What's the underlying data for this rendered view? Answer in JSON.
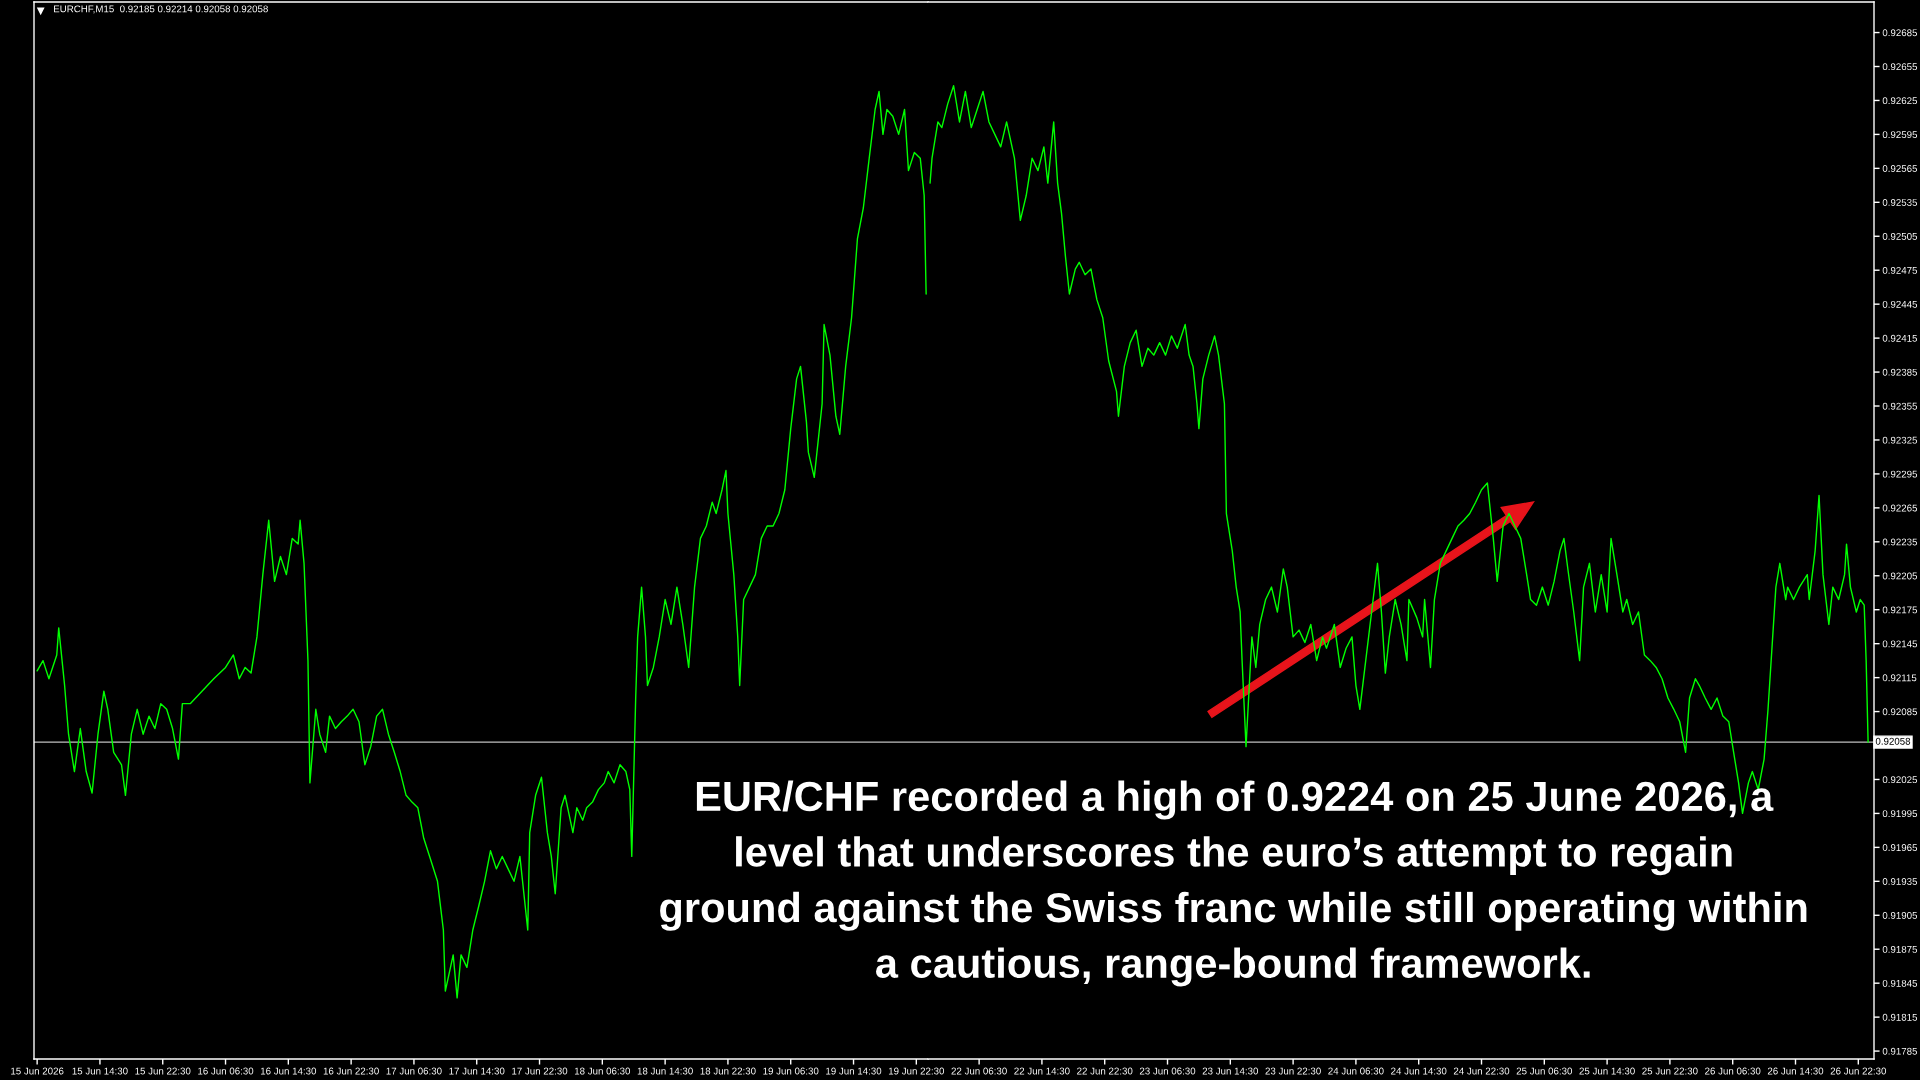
{
  "chart_data": [
    {
      "type": "line",
      "title": "EURCHF,M15  0.92185 0.92214 0.92058 0.92058",
      "x": [
        "2026-06-15T06:30",
        "2026-06-15T07:15",
        "2026-06-15T08:00",
        "2026-06-15T09:00",
        "2026-06-15T09:15",
        "2026-06-15T10:00",
        "2026-06-15T10:30",
        "2026-06-15T11:15",
        "2026-06-15T12:00",
        "2026-06-15T12:45",
        "2026-06-15T13:30",
        "2026-06-15T14:15",
        "2026-06-15T15:00",
        "2026-06-15T15:30",
        "2026-06-15T16:15",
        "2026-06-15T17:15",
        "2026-06-15T17:45",
        "2026-06-15T18:30",
        "2026-06-15T19:15",
        "2026-06-15T20:00",
        "2026-06-15T20:45",
        "2026-06-15T21:30",
        "2026-06-15T22:15",
        "2026-06-15T23:00",
        "2026-06-15T23:45",
        "2026-06-16T00:30",
        "2026-06-16T01:00",
        "2026-06-16T02:00",
        "2026-06-16T03:30",
        "2026-06-16T05:00",
        "2026-06-16T06:30",
        "2026-06-16T07:30",
        "2026-06-16T08:15",
        "2026-06-16T09:00",
        "2026-06-16T09:45",
        "2026-06-16T10:30",
        "2026-06-16T11:15",
        "2026-06-16T12:00",
        "2026-06-16T12:45",
        "2026-06-16T13:30",
        "2026-06-16T14:15",
        "2026-06-16T15:00",
        "2026-06-16T15:45",
        "2026-06-16T16:00",
        "2026-06-16T16:30",
        "2026-06-16T17:00",
        "2026-06-16T17:15",
        "2026-06-16T18:00",
        "2026-06-16T18:30",
        "2026-06-16T19:15",
        "2026-06-16T19:45",
        "2026-06-16T20:30",
        "2026-06-16T21:15",
        "2026-06-16T22:00",
        "2026-06-16T22:45",
        "2026-06-16T23:30",
        "2026-06-17T00:15",
        "2026-06-17T01:00",
        "2026-06-17T01:45",
        "2026-06-17T02:30",
        "2026-06-17T03:15",
        "2026-06-17T04:00",
        "2026-06-17T04:45",
        "2026-06-17T05:30",
        "2026-06-17T06:15",
        "2026-06-17T07:00",
        "2026-06-17T07:45",
        "2026-06-17T08:30",
        "2026-06-17T09:30",
        "2026-06-17T10:15",
        "2026-06-17T10:30",
        "2026-06-17T11:30",
        "2026-06-17T12:00",
        "2026-06-17T12:30",
        "2026-06-17T13:15",
        "2026-06-17T14:00",
        "2026-06-17T14:45",
        "2026-06-17T15:30",
        "2026-06-17T16:15",
        "2026-06-17T17:00",
        "2026-06-17T17:45",
        "2026-06-17T18:30",
        "2026-06-17T19:15",
        "2026-06-17T20:00",
        "2026-06-17T21:00",
        "2026-06-17T21:15",
        "2026-06-17T22:00",
        "2026-06-17T22:45",
        "2026-06-17T23:30",
        "2026-06-18T00:00",
        "2026-06-18T00:30",
        "2026-06-18T01:15",
        "2026-06-18T01:45",
        "2026-06-18T02:45",
        "2026-06-18T03:15",
        "2026-06-18T04:00",
        "2026-06-18T04:30",
        "2026-06-18T05:15",
        "2026-06-18T06:00",
        "2026-06-18T06:45",
        "2026-06-18T07:15",
        "2026-06-18T08:00",
        "2026-06-18T08:45",
        "2026-06-18T09:30",
        "2026-06-18T10:00",
        "2026-06-18T10:15",
        "2026-06-18T10:45",
        "2026-06-18T11:00",
        "2026-06-18T11:30",
        "2026-06-18T12:00",
        "2026-06-18T12:15",
        "2026-06-18T13:00",
        "2026-06-18T13:45",
        "2026-06-18T14:30",
        "2026-06-18T15:15",
        "2026-06-18T16:00",
        "2026-06-18T16:45",
        "2026-06-18T17:30",
        "2026-06-18T18:15",
        "2026-06-18T19:00",
        "2026-06-18T19:45",
        "2026-06-18T20:30",
        "2026-06-18T21:00",
        "2026-06-18T21:45",
        "2026-06-18T22:15",
        "2026-06-18T22:30",
        "2026-06-18T23:15",
        "2026-06-18T23:45",
        "2026-06-19T00:00",
        "2026-06-19T00:30",
        "2026-06-19T01:15",
        "2026-06-19T02:00",
        "2026-06-19T02:45",
        "2026-06-19T03:30",
        "2026-06-19T04:15",
        "2026-06-19T05:00",
        "2026-06-19T05:45",
        "2026-06-19T06:30",
        "2026-06-19T07:15",
        "2026-06-19T07:45",
        "2026-06-19T08:30",
        "2026-06-19T08:45",
        "2026-06-19T09:30",
        "2026-06-19T10:30",
        "2026-06-19T10:45",
        "2026-06-19T11:30",
        "2026-06-19T12:15",
        "2026-06-19T12:45",
        "2026-06-19T13:30",
        "2026-06-19T14:15",
        "2026-06-19T15:00",
        "2026-06-19T15:45",
        "2026-06-19T16:30",
        "2026-06-19T17:15",
        "2026-06-19T17:45",
        "2026-06-19T18:15",
        "2026-06-19T18:45",
        "2026-06-19T19:30",
        "2026-06-19T20:15",
        "2026-06-19T21:00",
        "2026-06-19T21:30",
        "2026-06-19T22:15",
        "2026-06-19T23:00",
        "2026-06-19T23:30",
        "2026-06-19T23:45"
      ],
      "series": [
        {
          "color": "#00ff00",
          "values": [
            0.92121,
            0.9213,
            0.92114,
            0.92135,
            0.92159,
            0.92108,
            0.92065,
            0.92032,
            0.9207,
            0.92032,
            0.92013,
            0.92065,
            0.92103,
            0.92087,
            0.92049,
            0.92038,
            0.92011,
            0.92065,
            0.92087,
            0.92065,
            0.92081,
            0.9207,
            0.92092,
            0.92087,
            0.9207,
            0.92043,
            0.92092,
            0.92092,
            0.92103,
            0.92114,
            0.92124,
            0.92135,
            0.92114,
            0.92124,
            0.92119,
            0.92151,
            0.92206,
            0.92254,
            0.922,
            0.92222,
            0.92206,
            0.92238,
            0.92233,
            0.92254,
            0.92216,
            0.9213,
            0.92022,
            0.92087,
            0.92065,
            0.92049,
            0.92081,
            0.9207,
            0.92076,
            0.92081,
            0.92087,
            0.92076,
            0.92038,
            0.92054,
            0.92081,
            0.92087,
            0.92065,
            0.92049,
            0.92032,
            0.92011,
            0.92005,
            0.92,
            0.91973,
            0.91957,
            0.91935,
            0.91892,
            0.91838,
            0.9187,
            0.91832,
            0.9187,
            0.91859,
            0.91892,
            0.91913,
            0.91935,
            0.91962,
            0.91946,
            0.91957,
            0.91946,
            0.91935,
            0.91957,
            0.91892,
            0.91978,
            0.92011,
            0.92027,
            0.91978,
            0.91957,
            0.91924,
            0.92,
            0.92011,
            0.91978,
            0.92,
            0.91989,
            0.92,
            0.92005,
            0.92016,
            0.92022,
            0.92032,
            0.92022,
            0.92038,
            0.92032,
            0.92016,
            0.91957,
            0.92097,
            0.92151,
            0.92195,
            0.92151,
            0.92108,
            0.92124,
            0.92151,
            0.92184,
            0.92162,
            0.92195,
            0.92162,
            0.92124,
            0.92195,
            0.92238,
            0.92249,
            0.9227,
            0.9226,
            0.92281,
            0.92298,
            0.9226,
            0.92206,
            0.92151,
            0.92108,
            0.92184,
            0.92195,
            0.92206,
            0.92238,
            0.92249,
            0.92249,
            0.9226,
            0.92281,
            0.92335,
            0.92379,
            0.9239,
            0.92341,
            0.92314,
            0.92292,
            0.92357,
            0.92427,
            0.924,
            0.92346,
            0.9233,
            0.9239,
            0.92433,
            0.92503,
            0.9253,
            0.92574,
            0.92617,
            0.92633,
            0.92595,
            0.92617,
            0.92611,
            0.92595,
            0.92617,
            0.92563,
            0.92579,
            0.92574,
            0.92541,
            0.92454
          ]
        }
      ],
      "xlim": [
        "2026-06-15T06:06",
        "2026-06-20T00:00"
      ],
      "xticks": [
        {
          "value": "2026-06-15T06:30",
          "label": "15 Jun 2026"
        },
        {
          "value": "2026-06-15T14:30",
          "label": "15 Jun 14:30"
        },
        {
          "value": "2026-06-15T22:30",
          "label": "15 Jun 22:30"
        },
        {
          "value": "2026-06-16T06:30",
          "label": "16 Jun 06:30"
        },
        {
          "value": "2026-06-16T14:30",
          "label": "16 Jun 14:30"
        },
        {
          "value": "2026-06-16T22:30",
          "label": "16 Jun 22:30"
        },
        {
          "value": "2026-06-17T06:30",
          "label": "17 Jun 06:30"
        },
        {
          "value": "2026-06-17T14:30",
          "label": "17 Jun 14:30"
        },
        {
          "value": "2026-06-17T22:30",
          "label": "17 Jun 22:30"
        },
        {
          "value": "2026-06-18T06:30",
          "label": "18 Jun 06:30"
        },
        {
          "value": "2026-06-18T14:30",
          "label": "18 Jun 14:30"
        },
        {
          "value": "2026-06-18T22:30",
          "label": "18 Jun 22:30"
        },
        {
          "value": "2026-06-19T06:30",
          "label": "19 Jun 06:30"
        },
        {
          "value": "2026-06-19T14:30",
          "label": "19 Jun 14:30"
        },
        {
          "value": "2026-06-19T22:30",
          "label": "19 Jun 22:30"
        }
      ],
      "ylim": [
        0.91778,
        0.92712
      ],
      "tick_labels": "x",
      "ref_lines": [
        {
          "axis": "y",
          "value": 0.92058,
          "color": "#c0c0c0"
        }
      ]
    },
    {
      "type": "line",
      "annotations": [
        "EUR/CHF recorded a high of 0.9224 on 25 June 2026, a\nlevel that underscores the euro’s attempt to regain\nground against the Swiss franc while still operating within\na cautious, range-bound framework."
      ],
      "x": [
        "2026-06-22T00:15",
        "2026-06-22T00:30",
        "2026-06-22T01:15",
        "2026-06-22T01:45",
        "2026-06-22T02:30",
        "2026-06-22T03:15",
        "2026-06-22T04:00",
        "2026-06-22T04:45",
        "2026-06-22T05:30",
        "2026-06-22T06:15",
        "2026-06-22T07:00",
        "2026-06-22T07:45",
        "2026-06-22T08:30",
        "2026-06-22T09:15",
        "2026-06-22T10:00",
        "2026-06-22T11:00",
        "2026-06-22T11:45",
        "2026-06-22T12:30",
        "2026-06-22T13:15",
        "2026-06-22T14:00",
        "2026-06-22T14:45",
        "2026-06-22T15:15",
        "2026-06-22T16:00",
        "2026-06-22T16:30",
        "2026-06-22T17:00",
        "2026-06-22T17:30",
        "2026-06-22T18:00",
        "2026-06-22T18:45",
        "2026-06-22T19:15",
        "2026-06-22T20:00",
        "2026-06-22T20:45",
        "2026-06-22T21:30",
        "2026-06-22T22:15",
        "2026-06-22T23:00",
        "2026-06-23T00:00",
        "2026-06-23T00:15",
        "2026-06-23T01:00",
        "2026-06-23T01:45",
        "2026-06-23T02:30",
        "2026-06-23T03:15",
        "2026-06-23T04:00",
        "2026-06-23T04:45",
        "2026-06-23T05:30",
        "2026-06-23T06:15",
        "2026-06-23T07:00",
        "2026-06-23T07:45",
        "2026-06-23T08:45",
        "2026-06-23T09:15",
        "2026-06-23T09:45",
        "2026-06-23T10:15",
        "2026-06-23T10:30",
        "2026-06-23T11:00",
        "2026-06-23T11:45",
        "2026-06-23T12:30",
        "2026-06-23T13:00",
        "2026-06-23T13:45",
        "2026-06-23T14:00",
        "2026-06-23T14:45",
        "2026-06-23T15:15",
        "2026-06-23T15:45",
        "2026-06-23T16:00",
        "2026-06-23T16:30",
        "2026-06-23T17:15",
        "2026-06-23T17:45",
        "2026-06-23T18:15",
        "2026-06-23T19:00",
        "2026-06-23T19:45",
        "2026-06-23T20:30",
        "2026-06-23T21:15",
        "2026-06-23T21:45",
        "2026-06-23T22:30",
        "2026-06-23T23:15",
        "2026-06-24T00:00",
        "2026-06-24T00:45",
        "2026-06-24T01:30",
        "2026-06-24T02:15",
        "2026-06-24T02:45",
        "2026-06-24T03:45",
        "2026-06-24T04:30",
        "2026-06-24T05:15",
        "2026-06-24T06:00",
        "2026-06-24T06:30",
        "2026-06-24T07:00",
        "2026-06-24T07:45",
        "2026-06-24T08:30",
        "2026-06-24T09:15",
        "2026-06-24T09:45",
        "2026-06-24T10:15",
        "2026-06-24T10:45",
        "2026-06-24T11:30",
        "2026-06-24T12:15",
        "2026-06-24T13:00",
        "2026-06-24T13:15",
        "2026-06-24T14:15",
        "2026-06-24T15:00",
        "2026-06-24T15:15",
        "2026-06-24T16:00",
        "2026-06-24T16:30",
        "2026-06-24T17:15",
        "2026-06-24T18:00",
        "2026-06-24T18:45",
        "2026-06-24T19:30",
        "2026-06-24T20:15",
        "2026-06-24T21:00",
        "2026-06-24T21:45",
        "2026-06-24T22:30",
        "2026-06-24T23:15",
        "2026-06-25T00:00",
        "2026-06-25T00:30",
        "2026-06-25T01:15",
        "2026-06-25T02:00",
        "2026-06-25T02:45",
        "2026-06-25T03:30",
        "2026-06-25T04:15",
        "2026-06-25T04:45",
        "2026-06-25T05:30",
        "2026-06-25T06:15",
        "2026-06-25T07:00",
        "2026-06-25T07:45",
        "2026-06-25T08:30",
        "2026-06-25T09:00",
        "2026-06-25T09:30",
        "2026-06-25T10:15",
        "2026-06-25T11:00",
        "2026-06-25T11:30",
        "2026-06-25T12:15",
        "2026-06-25T13:00",
        "2026-06-25T13:45",
        "2026-06-25T14:30",
        "2026-06-25T15:00",
        "2026-06-25T15:45",
        "2026-06-25T16:30",
        "2026-06-25T17:00",
        "2026-06-25T17:45",
        "2026-06-25T18:30",
        "2026-06-25T19:15",
        "2026-06-25T20:00",
        "2026-06-25T20:45",
        "2026-06-25T21:30",
        "2026-06-25T22:15",
        "2026-06-25T23:00",
        "2026-06-25T23:45",
        "2026-06-26T00:30",
        "2026-06-26T01:00",
        "2026-06-26T01:45",
        "2026-06-26T02:15",
        "2026-06-26T03:00",
        "2026-06-26T03:45",
        "2026-06-26T04:30",
        "2026-06-26T05:15",
        "2026-06-26T06:00",
        "2026-06-26T06:30",
        "2026-06-26T07:15",
        "2026-06-26T07:45",
        "2026-06-26T08:30",
        "2026-06-26T09:00",
        "2026-06-26T09:45",
        "2026-06-26T10:30",
        "2026-06-26T11:00",
        "2026-06-26T11:30",
        "2026-06-26T12:00",
        "2026-06-26T12:30",
        "2026-06-26T13:15",
        "2026-06-26T13:30",
        "2026-06-26T14:15",
        "2026-06-26T15:00",
        "2026-06-26T16:00",
        "2026-06-26T16:15",
        "2026-06-26T17:00",
        "2026-06-26T17:30",
        "2026-06-26T18:00",
        "2026-06-26T18:45",
        "2026-06-26T19:15",
        "2026-06-26T20:00",
        "2026-06-26T20:45",
        "2026-06-26T21:00",
        "2026-06-26T21:30",
        "2026-06-26T22:15",
        "2026-06-26T22:45",
        "2026-06-26T23:15",
        "2026-06-26T23:30",
        "2026-06-26T23:45"
      ],
      "series": [
        {
          "color": "#00ff00",
          "values": [
            0.92552,
            0.92574,
            0.92606,
            0.92601,
            0.92622,
            0.92638,
            0.92606,
            0.92633,
            0.92601,
            0.92617,
            0.92633,
            0.92606,
            0.92595,
            0.92584,
            0.92606,
            0.92574,
            0.92519,
            0.92541,
            0.92574,
            0.92563,
            0.92584,
            0.92552,
            0.92606,
            0.92552,
            0.92525,
            0.92487,
            0.92454,
            0.92476,
            0.92482,
            0.92471,
            0.92476,
            0.92449,
            0.92433,
            0.92395,
            0.92368,
            0.92346,
            0.9239,
            0.92411,
            0.92422,
            0.9239,
            0.92406,
            0.924,
            0.92411,
            0.924,
            0.92417,
            0.92406,
            0.92427,
            0.924,
            0.9239,
            0.92357,
            0.92335,
            0.92379,
            0.924,
            0.92417,
            0.924,
            0.92357,
            0.9226,
            0.92227,
            0.92195,
            0.92173,
            0.9213,
            0.92054,
            0.92151,
            0.92124,
            0.92162,
            0.92184,
            0.92195,
            0.92173,
            0.92211,
            0.92195,
            0.92151,
            0.92157,
            0.92146,
            0.92162,
            0.9213,
            0.92151,
            0.92141,
            0.92162,
            0.92124,
            0.92141,
            0.92151,
            0.92108,
            0.92087,
            0.9213,
            0.92173,
            0.92216,
            0.92173,
            0.92119,
            0.92151,
            0.92184,
            0.92162,
            0.9213,
            0.92184,
            0.92168,
            0.92151,
            0.92184,
            0.92124,
            0.92184,
            0.92216,
            0.92227,
            0.92238,
            0.92249,
            0.92254,
            0.9226,
            0.9227,
            0.92281,
            0.92287,
            0.92238,
            0.922,
            0.92249,
            0.9226,
            0.92249,
            0.92238,
            0.92206,
            0.92184,
            0.92179,
            0.92195,
            0.92179,
            0.922,
            0.92227,
            0.92238,
            0.92211,
            0.92173,
            0.9213,
            0.92195,
            0.92216,
            0.92173,
            0.92206,
            0.92173,
            0.92238,
            0.92206,
            0.92173,
            0.92184,
            0.92162,
            0.92173,
            0.92135,
            0.9213,
            0.92124,
            0.92114,
            0.92097,
            0.92087,
            0.92076,
            0.92049,
            0.92097,
            0.92114,
            0.92108,
            0.92097,
            0.92087,
            0.92097,
            0.92081,
            0.92076,
            0.92054,
            0.92022,
            0.91995,
            0.92022,
            0.92032,
            0.92016,
            0.92043,
            0.92087,
            0.92141,
            0.92195,
            0.92216,
            0.92184,
            0.92195,
            0.92184,
            0.92195,
            0.92206,
            0.92184,
            0.92227,
            0.92276,
            0.92206,
            0.92162,
            0.92195,
            0.92184,
            0.92206,
            0.92233,
            0.92195,
            0.92173,
            0.92184,
            0.92179,
            0.9213,
            0.92058
          ]
        }
      ],
      "xlim": [
        "2026-06-22T00:00",
        "2026-06-27T00:30"
      ],
      "xticks": [
        {
          "value": "2026-06-22T06:30",
          "label": "22 Jun 06:30"
        },
        {
          "value": "2026-06-22T14:30",
          "label": "22 Jun 14:30"
        },
        {
          "value": "2026-06-22T22:30",
          "label": "22 Jun 22:30"
        },
        {
          "value": "2026-06-23T06:30",
          "label": "23 Jun 06:30"
        },
        {
          "value": "2026-06-23T14:30",
          "label": "23 Jun 14:30"
        },
        {
          "value": "2026-06-23T22:30",
          "label": "23 Jun 22:30"
        },
        {
          "value": "2026-06-24T06:30",
          "label": "24 Jun 06:30"
        },
        {
          "value": "2026-06-24T14:30",
          "label": "24 Jun 14:30"
        },
        {
          "value": "2026-06-24T22:30",
          "label": "24 Jun 22:30"
        },
        {
          "value": "2026-06-25T06:30",
          "label": "25 Jun 06:30"
        },
        {
          "value": "2026-06-25T14:30",
          "label": "25 Jun 14:30"
        },
        {
          "value": "2026-06-25T22:30",
          "label": "25 Jun 22:30"
        },
        {
          "value": "2026-06-26T06:30",
          "label": "26 Jun 06:30"
        },
        {
          "value": "2026-06-26T14:30",
          "label": "26 Jun 14:30"
        },
        {
          "value": "2026-06-26T22:30",
          "label": "26 Jun 22:30"
        }
      ],
      "ylim": [
        0.91778,
        0.92712
      ],
      "yticks": [
        0.92685,
        0.92655,
        0.92625,
        0.92595,
        0.92565,
        0.92535,
        0.92505,
        0.92475,
        0.92445,
        0.92415,
        0.92385,
        0.92355,
        0.92325,
        0.92295,
        0.92265,
        0.92235,
        0.92205,
        0.92175,
        0.92145,
        0.92115,
        0.92085,
        {
          "value": 0.92055,
          "label": null
        },
        0.92025,
        0.91995,
        0.91965,
        0.91935,
        0.91905,
        0.91875,
        0.91845,
        0.91815,
        0.91785
      ],
      "ref_lines": [
        {
          "axis": "y",
          "value": 0.92058,
          "label": "0.92058",
          "color": "#c0c0c0"
        }
      ]
    }
  ]
}
